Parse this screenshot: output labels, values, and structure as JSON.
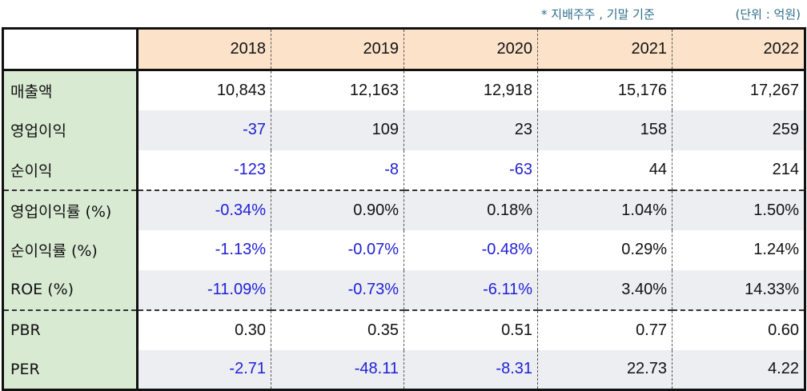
{
  "notes": {
    "basis": "* 지배주주 , 기말 기준",
    "unit": "(단위 : 억원)"
  },
  "colors": {
    "negative": "#1f1fd6",
    "label_bg": "#d9ead3",
    "header_bg": "#fbe2c9",
    "shade_bg": "#eceef2"
  },
  "table": {
    "years": [
      "2018",
      "2019",
      "2020",
      "2021",
      "2022"
    ],
    "rows": [
      {
        "label": "매출액",
        "values": [
          "10,843",
          "12,163",
          "12,918",
          "15,176",
          "17,267"
        ]
      },
      {
        "label": "영업이익",
        "values": [
          "-37",
          "109",
          "23",
          "158",
          "259"
        ]
      },
      {
        "label": "순이익",
        "values": [
          "-123",
          "-8",
          "-63",
          "44",
          "214"
        ]
      },
      {
        "label": "영업이익률 (%)",
        "values": [
          "-0.34%",
          "0.90%",
          "0.18%",
          "1.04%",
          "1.50%"
        ]
      },
      {
        "label": "순이익률 (%)",
        "values": [
          "-1.13%",
          "-0.07%",
          "-0.48%",
          "0.29%",
          "1.24%"
        ]
      },
      {
        "label": "ROE (%)",
        "values": [
          "-11.09%",
          "-0.73%",
          "-6.11%",
          "3.40%",
          "14.33%"
        ]
      },
      {
        "label": "PBR",
        "values": [
          "0.30",
          "0.35",
          "0.51",
          "0.77",
          "0.60"
        ]
      },
      {
        "label": "PER",
        "values": [
          "-2.71",
          "-48.11",
          "-8.31",
          "22.73",
          "4.22"
        ]
      }
    ]
  }
}
